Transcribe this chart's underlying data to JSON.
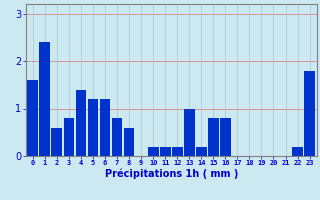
{
  "hours": [
    0,
    1,
    2,
    3,
    4,
    5,
    6,
    7,
    8,
    9,
    10,
    11,
    12,
    13,
    14,
    15,
    16,
    17,
    18,
    19,
    20,
    21,
    22,
    23
  ],
  "values": [
    1.6,
    2.4,
    0.6,
    0.8,
    1.4,
    1.2,
    1.2,
    0.8,
    0.6,
    0.0,
    0.2,
    0.2,
    0.2,
    1.0,
    0.2,
    0.8,
    0.8,
    0.0,
    0.0,
    0.0,
    0.0,
    0.0,
    0.2,
    1.8
  ],
  "bar_color": "#0033cc",
  "background_color": "#cce8f0",
  "grid_color": "#aaccdd",
  "xlabel": "Précipitations 1h ( mm )",
  "xlabel_color": "#0000cc",
  "tick_color": "#0000cc",
  "axis_color": "#808080",
  "ylim": [
    0,
    3.2
  ],
  "yticks": [
    0,
    1,
    2,
    3
  ],
  "bar_width": 0.9
}
